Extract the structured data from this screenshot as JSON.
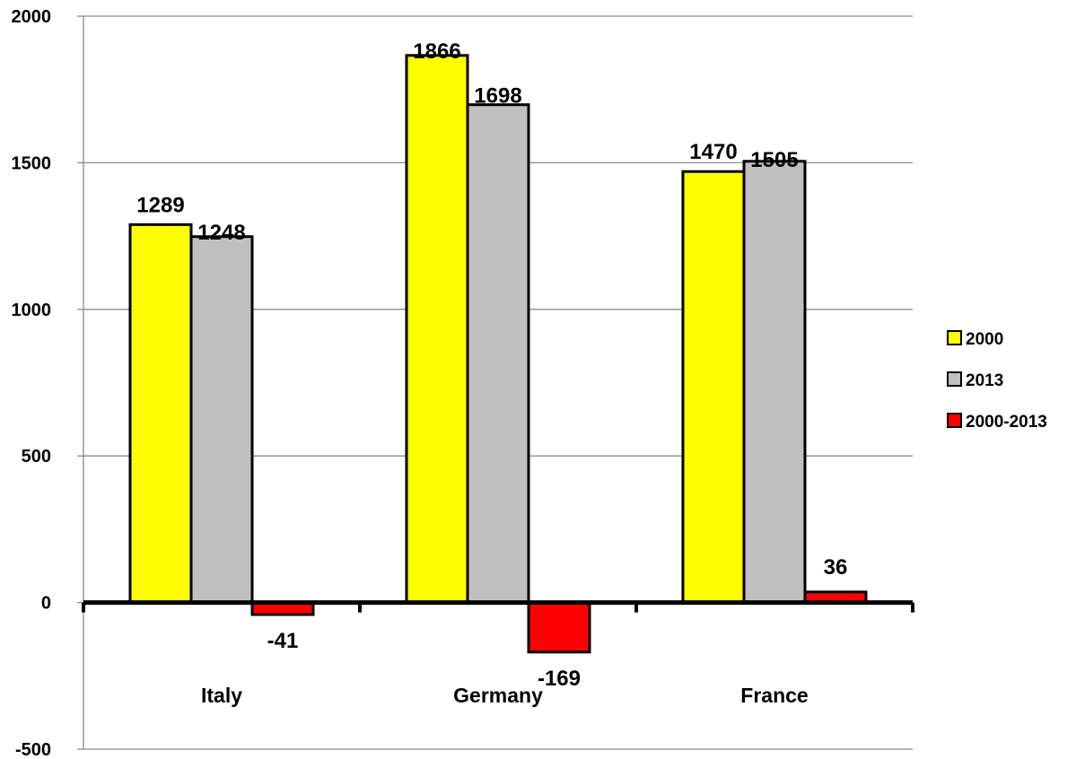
{
  "chart_data": {
    "type": "bar",
    "title": "",
    "xlabel": "",
    "ylabel": "",
    "categories": [
      "Italy",
      "Germany",
      "France"
    ],
    "series": [
      {
        "name": "2000",
        "color": "#ffff00",
        "values": [
          1289,
          1866,
          1470
        ]
      },
      {
        "name": "2013",
        "color": "#c0c0c0",
        "values": [
          1248,
          1698,
          1505
        ]
      },
      {
        "name": "2000-2013",
        "color": "#ff0000",
        "values": [
          -41,
          -169,
          36
        ]
      }
    ],
    "ylim": [
      -500,
      2000
    ],
    "yticks": [
      -500,
      0,
      500,
      1000,
      1500,
      2000
    ],
    "ytick_labels": [
      "-500",
      "0",
      "500",
      "1000",
      "1500",
      "2000"
    ],
    "data_labels": [
      [
        "1289",
        "1866",
        "1470"
      ],
      [
        "1248",
        "1698",
        "1505"
      ],
      [
        "-41",
        "-169",
        "36"
      ]
    ],
    "grid": true,
    "legend_position": "right"
  }
}
